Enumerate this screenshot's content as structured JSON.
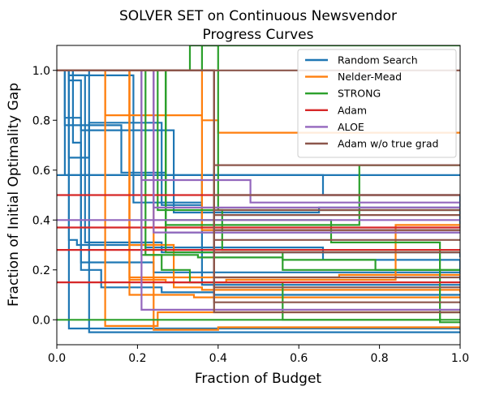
{
  "chart_data": {
    "type": "line",
    "title_lines": [
      "SOLVER SET on Continuous Newsvendor",
      "Progress Curves"
    ],
    "xlabel": "Fraction of Budget",
    "ylabel": "Fraction of Initial Optimality Gap",
    "xlim": [
      0.0,
      1.0
    ],
    "ylim": [
      -0.1,
      1.1
    ],
    "xticks": [
      "0.0",
      "0.2",
      "0.4",
      "0.6",
      "0.8",
      "1.0"
    ],
    "yticks": [
      "0.0",
      "0.2",
      "0.4",
      "0.6",
      "0.8",
      "1.0"
    ],
    "legend_position": "top-right",
    "step_style": "post",
    "series": [
      {
        "name": "Random Search",
        "color": "#1f77b4",
        "curves": [
          {
            "x": [
              0,
              0.02,
              0.09,
              0.15,
              0.2,
              1.0
            ],
            "y": [
              1.0,
              0.58,
              0.58,
              0.58,
              0.58,
              0.58
            ]
          },
          {
            "x": [
              0,
              0.02,
              0.06,
              0.1,
              0.16,
              0.27,
              0.32,
              0.39,
              1.0
            ],
            "y": [
              1.0,
              0.81,
              0.78,
              0.78,
              0.59,
              0.35,
              0.35,
              0.35,
              0.35
            ]
          },
          {
            "x": [
              0,
              0.03,
              0.07,
              0.08,
              0.12,
              0.26,
              0.36,
              0.66,
              1.0
            ],
            "y": [
              1.0,
              0.65,
              0.65,
              0.79,
              0.79,
              0.46,
              0.58,
              0.5,
              0.38
            ]
          },
          {
            "x": [
              0,
              0.03,
              0.04,
              0.11,
              0.19,
              0.27,
              0.36,
              0.4,
              1.0
            ],
            "y": [
              1.0,
              0.98,
              0.98,
              0.98,
              0.47,
              0.47,
              0.36,
              0.36,
              0.36
            ]
          },
          {
            "x": [
              0,
              0.02,
              0.06,
              0.2,
              0.29,
              0.33,
              0.65,
              1.0
            ],
            "y": [
              1.0,
              0.78,
              0.76,
              0.76,
              0.43,
              0.43,
              0.45,
              0.37
            ]
          },
          {
            "x": [
              0,
              0.04,
              0.07,
              0.17,
              0.26,
              0.31,
              0.33,
              1.0
            ],
            "y": [
              1.0,
              0.98,
              0.31,
              0.31,
              0.27,
              0.27,
              0.27,
              0.25
            ]
          },
          {
            "x": [
              0,
              0.03,
              0.06,
              0.12,
              0.24,
              0.33,
              0.4,
              1.0
            ],
            "y": [
              1.0,
              0.96,
              0.23,
              0.23,
              0.19,
              0.19,
              0.19,
              0.19
            ]
          },
          {
            "x": [
              0,
              0.04,
              0.06,
              0.11,
              0.17,
              0.26,
              0.39,
              1.0
            ],
            "y": [
              1.0,
              0.71,
              0.2,
              0.13,
              0.13,
              0.11,
              0.1,
              0.1
            ]
          },
          {
            "x": [
              0,
              0.03,
              0.05,
              0.12,
              0.22,
              0.41,
              0.66,
              1.0
            ],
            "y": [
              1.0,
              0.32,
              0.3,
              0.3,
              0.29,
              0.29,
              0.24,
              0.16
            ]
          },
          {
            "x": [
              0,
              0.03,
              0.07,
              0.1,
              0.14,
              0.33,
              0.4,
              1.0
            ],
            "y": [
              1.0,
              -0.035,
              -0.035,
              -0.035,
              -0.035,
              -0.035,
              -0.035,
              -0.04
            ]
          },
          {
            "x": [
              0,
              0.08,
              0.19,
              0.24,
              0.26,
              1.0
            ],
            "y": [
              1.0,
              -0.05,
              -0.05,
              -0.05,
              -0.05,
              -0.05
            ]
          },
          {
            "x": [
              0,
              0.36,
              0.4,
              1.0
            ],
            "y": [
              0.58,
              0.14,
              0.14,
              0.14
            ]
          }
        ]
      },
      {
        "name": "Nelder-Mead",
        "color": "#ff7f0e",
        "curves": [
          {
            "x": [
              0,
              0.12,
              0.18,
              0.36,
              0.4,
              1.0
            ],
            "y": [
              1.0,
              0.82,
              0.82,
              0.8,
              0.75,
              0.75
            ]
          },
          {
            "x": [
              0,
              0.18,
              0.2,
              0.27,
              0.42,
              0.63,
              0.84,
              1.0
            ],
            "y": [
              1.0,
              0.16,
              0.16,
              0.15,
              0.16,
              0.16,
              0.38,
              0.38
            ]
          },
          {
            "x": [
              0,
              0.12,
              0.18,
              0.21,
              0.25,
              0.4,
              0.55,
              1.0
            ],
            "y": [
              1.0,
              -0.025,
              -0.025,
              -0.025,
              0.03,
              0.03,
              0.03,
              0.03
            ]
          },
          {
            "x": [
              0,
              0.18,
              0.29,
              0.3,
              0.36,
              0.6,
              0.84,
              1.0
            ],
            "y": [
              1.0,
              0.3,
              0.13,
              0.13,
              0.12,
              0.12,
              0.12,
              0.11
            ]
          },
          {
            "x": [
              0,
              0.18,
              0.26,
              0.4,
              0.7,
              1.0
            ],
            "y": [
              1.0,
              0.17,
              0.17,
              0.17,
              0.18,
              0.18
            ]
          },
          {
            "x": [
              0,
              0.24,
              0.3,
              0.4,
              0.62,
              0.84,
              1.0
            ],
            "y": [
              1.0,
              -0.04,
              -0.04,
              -0.03,
              -0.03,
              -0.03,
              -0.03
            ]
          },
          {
            "x": [
              0,
              0.36,
              0.42,
              1.0
            ],
            "y": [
              1.0,
              0.36,
              0.36,
              0.36
            ]
          },
          {
            "x": [
              0,
              0.18,
              0.23,
              0.34,
              0.45,
              0.84,
              1.0
            ],
            "y": [
              1.0,
              0.1,
              0.1,
              0.09,
              0.09,
              0.09,
              0.09
            ]
          }
        ]
      },
      {
        "name": "STRONG",
        "color": "#2ca02c",
        "curves": [
          {
            "x": [
              0,
              0.33,
              0.35,
              0.4,
              1.0
            ],
            "y": [
              1.0,
              1.1,
              1.1,
              0.44,
              0.44
            ]
          },
          {
            "x": [
              0,
              0.36,
              0.4,
              1.0
            ],
            "y": [
              1.0,
              1.1,
              1.1,
              1.1
            ]
          },
          {
            "x": [
              0,
              0.25,
              0.27,
              0.33,
              0.41,
              0.68,
              1.0
            ],
            "y": [
              1.0,
              0.44,
              0.44,
              0.44,
              0.28,
              0.28,
              0.28
            ]
          },
          {
            "x": [
              0,
              0.21,
              0.22,
              0.35,
              0.46,
              0.56,
              0.79,
              0.95,
              1.0
            ],
            "y": [
              1.0,
              0.26,
              0.26,
              0.25,
              0.25,
              0.24,
              0.2,
              0.2,
              0.2
            ]
          },
          {
            "x": [
              0,
              0.22,
              0.26,
              0.27,
              0.33,
              0.56,
              0.79,
              0.95,
              1.0
            ],
            "y": [
              1.0,
              0.26,
              0.2,
              0.2,
              0.15,
              0.0,
              0.0,
              0.03,
              0.03
            ]
          },
          {
            "x": [
              0,
              0.27,
              0.29,
              0.42,
              0.45,
              0.75,
              0.95,
              1.0
            ],
            "y": [
              1.0,
              0.38,
              0.38,
              0.38,
              0.38,
              0.62,
              0.62,
              0.62
            ]
          },
          {
            "x": [
              0,
              0.27,
              0.32,
              0.55,
              0.68,
              0.8,
              0.95,
              1.0
            ],
            "y": [
              1.0,
              0.4,
              0.4,
              0.4,
              0.31,
              0.31,
              -0.01,
              -0.01
            ]
          },
          {
            "x": [
              0,
              0.27,
              0.35,
              0.47,
              0.56,
              0.66,
              1.0
            ],
            "y": [
              1.0,
              0.27,
              0.27,
              0.27,
              0.2,
              0.2,
              0.2
            ]
          },
          {
            "x": [
              0,
              0.42,
              0.55,
              0.8,
              1.0
            ],
            "y": [
              0.0,
              0.0,
              0.0,
              0.0,
              0.0
            ]
          }
        ]
      },
      {
        "name": "Adam",
        "color": "#d62728",
        "curves": [
          {
            "x": [
              0,
              0.4,
              1.0
            ],
            "y": [
              0.5,
              0.5,
              0.5
            ]
          },
          {
            "x": [
              0,
              0.4,
              1.0
            ],
            "y": [
              0.37,
              0.37,
              0.37
            ]
          },
          {
            "x": [
              0,
              0.4,
              1.0
            ],
            "y": [
              0.28,
              0.28,
              0.28
            ]
          },
          {
            "x": [
              0,
              0.4,
              1.0
            ],
            "y": [
              0.15,
              0.15,
              0.15
            ]
          }
        ]
      },
      {
        "name": "ALOE",
        "color": "#9467bd",
        "curves": [
          {
            "x": [
              0,
              0.21,
              0.25,
              0.48,
              0.6,
              1.0
            ],
            "y": [
              1.0,
              0.56,
              0.56,
              0.47,
              0.47,
              0.47
            ]
          },
          {
            "x": [
              0,
              0.21,
              0.22,
              0.4,
              1.0
            ],
            "y": [
              1.0,
              0.04,
              0.04,
              0.04,
              0.04
            ]
          },
          {
            "x": [
              0,
              0.24,
              0.4,
              1.0
            ],
            "y": [
              1.0,
              0.35,
              0.35,
              0.35
            ]
          },
          {
            "x": [
              0,
              0.24,
              0.4,
              1.0
            ],
            "y": [
              1.0,
              0.45,
              0.45,
              0.45
            ]
          },
          {
            "x": [
              0,
              0.4,
              1.0
            ],
            "y": [
              0.4,
              0.4,
              0.4
            ]
          }
        ]
      },
      {
        "name": "Adam w/o true grad",
        "color": "#8c564b",
        "curves": [
          {
            "x": [
              0,
              0.39,
              1.0
            ],
            "y": [
              1.0,
              1.0,
              1.0
            ]
          },
          {
            "x": [
              0,
              0.39,
              1.0
            ],
            "y": [
              1.0,
              0.62,
              0.62
            ]
          },
          {
            "x": [
              0,
              0.39,
              1.0
            ],
            "y": [
              1.0,
              0.5,
              0.5
            ]
          },
          {
            "x": [
              0,
              0.39,
              1.0
            ],
            "y": [
              1.0,
              0.44,
              0.44
            ]
          },
          {
            "x": [
              0,
              0.39,
              1.0
            ],
            "y": [
              1.0,
              0.42,
              0.42
            ]
          },
          {
            "x": [
              0,
              0.39,
              1.0
            ],
            "y": [
              1.0,
              0.36,
              0.36
            ]
          },
          {
            "x": [
              0,
              0.39,
              1.0
            ],
            "y": [
              1.0,
              0.32,
              0.32
            ]
          },
          {
            "x": [
              0,
              0.39,
              1.0
            ],
            "y": [
              1.0,
              0.27,
              0.27
            ]
          },
          {
            "x": [
              0,
              0.39,
              1.0
            ],
            "y": [
              1.0,
              0.17,
              0.17
            ]
          },
          {
            "x": [
              0,
              0.39,
              1.0
            ],
            "y": [
              1.0,
              0.13,
              0.13
            ]
          },
          {
            "x": [
              0,
              0.39,
              1.0
            ],
            "y": [
              1.0,
              0.07,
              0.07
            ]
          },
          {
            "x": [
              0,
              0.39,
              1.0
            ],
            "y": [
              1.0,
              0.03,
              0.03
            ]
          }
        ]
      }
    ]
  }
}
